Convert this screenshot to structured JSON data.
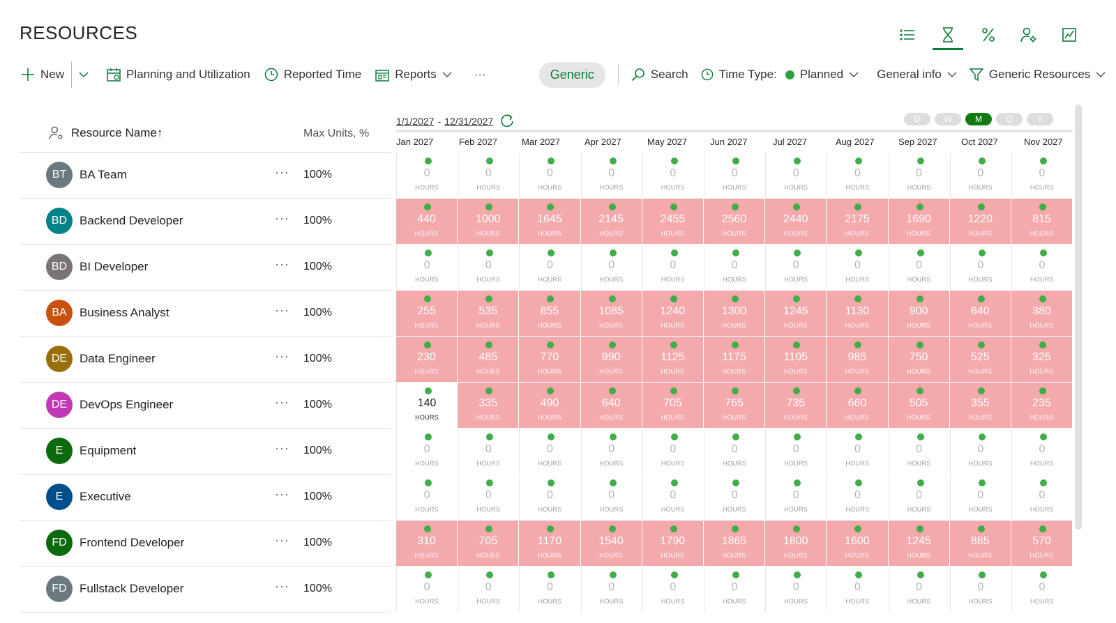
{
  "page": {
    "title": "RESOURCES"
  },
  "top_icons": [
    "list-icon",
    "hourglass-icon",
    "percent-icon",
    "person-settings-icon",
    "chart-icon"
  ],
  "toolbar": {
    "new_label": "New",
    "planning_label": "Planning and Utilization",
    "reported_label": "Reported Time",
    "reports_label": "Reports",
    "more_label": "···",
    "generic_label": "Generic",
    "search_label": "Search",
    "time_type_label": "Time Type:",
    "time_type_value": "Planned",
    "general_info_label": "General info",
    "filter_label": "Generic Resources"
  },
  "columns": {
    "name_header": "Resource Name",
    "sort_indicator": "↑",
    "max_header": "Max Units, %"
  },
  "date_range": {
    "start": "1/1/2027",
    "separator": "-",
    "end": "12/31/2027"
  },
  "scales": [
    "D",
    "W",
    "M",
    "Q",
    "Y"
  ],
  "active_scale": "M",
  "months": [
    "Jan 2027",
    "Feb 2027",
    "Mar 2027",
    "Apr 2027",
    "May 2027",
    "Jun 2027",
    "Jul 2027",
    "Aug 2027",
    "Sep 2027",
    "Oct 2027",
    "Nov 2027"
  ],
  "unit_label": "HOURS",
  "colors": {
    "accent": "#0a7a3a",
    "over_allocated": "#f4a9ad",
    "dot": "#3fae49"
  },
  "resources": [
    {
      "initials": "BT",
      "name": "BA Team",
      "max": "100%",
      "color": "#69797e",
      "more": "···",
      "hours": [
        "0",
        "0",
        "0",
        "0",
        "0",
        "0",
        "0",
        "0",
        "0",
        "0",
        "0"
      ],
      "status": "zero"
    },
    {
      "initials": "BD",
      "name": "Backend Developer",
      "max": "100%",
      "color": "#038387",
      "more": "···",
      "hours": [
        "440",
        "1000",
        "1645",
        "2145",
        "2455",
        "2560",
        "2440",
        "2175",
        "1690",
        "1220",
        "815"
      ],
      "status": "over"
    },
    {
      "initials": "BD",
      "name": "BI Developer",
      "max": "100%",
      "color": "#7a7574",
      "more": "···",
      "hours": [
        "0",
        "0",
        "0",
        "0",
        "0",
        "0",
        "0",
        "0",
        "0",
        "0",
        "0"
      ],
      "status": "zero"
    },
    {
      "initials": "BA",
      "name": "Business Analyst",
      "max": "100%",
      "color": "#ca5010",
      "more": "···",
      "hours": [
        "255",
        "535",
        "855",
        "1085",
        "1240",
        "1300",
        "1245",
        "1130",
        "900",
        "640",
        "380"
      ],
      "status": "over"
    },
    {
      "initials": "DE",
      "name": "Data Engineer",
      "max": "100%",
      "color": "#986f0b",
      "more": "···",
      "hours": [
        "230",
        "485",
        "770",
        "990",
        "1125",
        "1175",
        "1105",
        "985",
        "750",
        "525",
        "325"
      ],
      "status": "over"
    },
    {
      "initials": "DE",
      "name": "DevOps Engineer",
      "max": "100%",
      "color": "#c239b3",
      "more": "···",
      "hours": [
        "140",
        "335",
        "490",
        "640",
        "705",
        "765",
        "735",
        "660",
        "505",
        "355",
        "235"
      ],
      "status": "over_except_first"
    },
    {
      "initials": "E",
      "name": "Equipment",
      "max": "100%",
      "color": "#0b6a0b",
      "more": "···",
      "hours": [
        "0",
        "0",
        "0",
        "0",
        "0",
        "0",
        "0",
        "0",
        "0",
        "0",
        "0"
      ],
      "status": "zero"
    },
    {
      "initials": "E",
      "name": "Executive",
      "max": "100%",
      "color": "#004e8c",
      "more": "···",
      "hours": [
        "0",
        "0",
        "0",
        "0",
        "0",
        "0",
        "0",
        "0",
        "0",
        "0",
        "0"
      ],
      "status": "zero"
    },
    {
      "initials": "FD",
      "name": "Frontend Developer",
      "max": "100%",
      "color": "#0b6a0b",
      "more": "···",
      "hours": [
        "310",
        "705",
        "1170",
        "1540",
        "1790",
        "1865",
        "1800",
        "1600",
        "1245",
        "885",
        "570"
      ],
      "status": "over"
    },
    {
      "initials": "FD",
      "name": "Fullstack Developer",
      "max": "100%",
      "color": "#69797e",
      "more": "···",
      "hours": [
        "0",
        "0",
        "0",
        "0",
        "0",
        "0",
        "0",
        "0",
        "0",
        "0",
        "0"
      ],
      "status": "zero"
    }
  ]
}
